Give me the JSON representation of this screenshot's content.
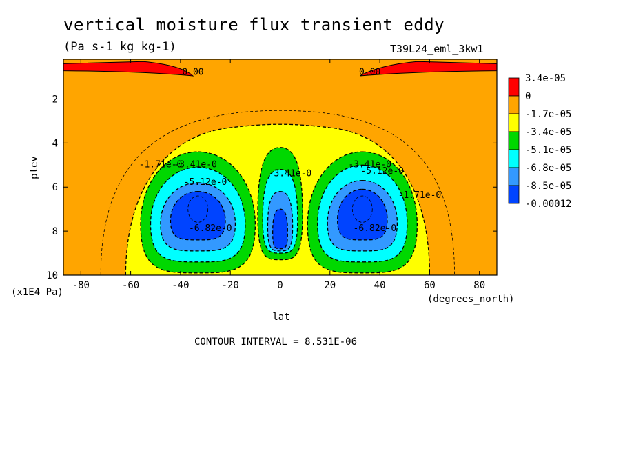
{
  "chart_data": {
    "type": "heatmap",
    "title": "vertical moisture flux transient eddy",
    "subtitle": "(Pa s-1 kg kg-1)",
    "run_label": "T39L24_eml_3kw1",
    "xlabel": "lat",
    "x_units": "(degrees_north)",
    "ylabel": "plev",
    "y_units": "(x1E4 Pa)",
    "footer": "CONTOUR INTERVAL = 8.531E-06",
    "x_ticks": [
      -80,
      -60,
      -40,
      -20,
      0,
      20,
      40,
      60,
      80
    ],
    "y_ticks": [
      2,
      4,
      6,
      8,
      10
    ],
    "xlim": [
      -87,
      87
    ],
    "ylim": [
      10,
      0.2
    ],
    "colorbar": {
      "levels": [
        "3.4e-05",
        "0",
        "-1.7e-05",
        "-3.4e-05",
        "-5.1e-05",
        "-6.8e-05",
        "-8.5e-05",
        "-0.00012"
      ],
      "colors": [
        "#ff0000",
        "#ffa500",
        "#ffff00",
        "#00d800",
        "#00ffff",
        "#3399ff",
        "#0044ff"
      ]
    },
    "contour_labels": [
      {
        "text": "0.00",
        "x": -35,
        "y": 0.9
      },
      {
        "text": "0.00",
        "x": 36,
        "y": 0.9
      },
      {
        "text": "-1.71e-0",
        "x": -48,
        "y": 5.1
      },
      {
        "text": "-3.41e-0",
        "x": -34,
        "y": 5.1
      },
      {
        "text": "-5.12e-0",
        "x": -30,
        "y": 5.9
      },
      {
        "text": "-6.82e-0",
        "x": -28,
        "y": 8.0
      },
      {
        "text": "-3.41e-0",
        "x": 4,
        "y": 5.5
      },
      {
        "text": "-3.41e-0",
        "x": 36,
        "y": 5.1
      },
      {
        "text": "-5.12e-0",
        "x": 41,
        "y": 5.4
      },
      {
        "text": "-6.82e-0",
        "x": 38,
        "y": 8.0
      },
      {
        "text": "-1.71e-0",
        "x": 56,
        "y": 6.5
      }
    ],
    "blobs": [
      {
        "cx": -33,
        "cy": 7.0,
        "rx": [
          8,
          4,
          3,
          2.2,
          1.5,
          0.9
        ],
        "ry": [
          6.2,
          6.6,
          7.8,
          7.0,
          5.6,
          4.6
        ],
        "levels": [
          2,
          3,
          4,
          5,
          6
        ]
      },
      {
        "cx": 33,
        "cy": 7.0,
        "levels": [
          2,
          3,
          4,
          5,
          6
        ]
      },
      {
        "cx": 0,
        "cy": 7.2,
        "levels": [
          2,
          3,
          4,
          5
        ]
      }
    ]
  }
}
